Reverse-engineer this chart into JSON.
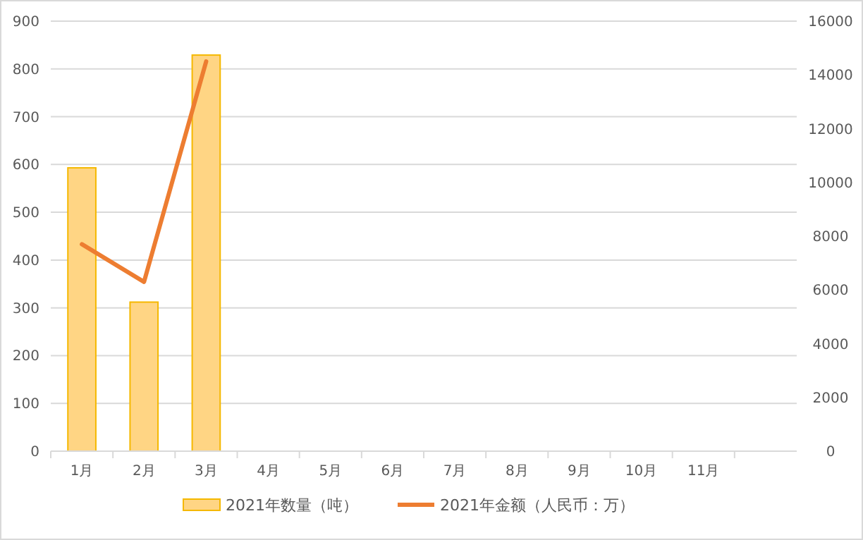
{
  "chart_data": {
    "type": "bar",
    "categories": [
      "1月",
      "2月",
      "3月",
      "4月",
      "5月",
      "6月",
      "7月",
      "8月",
      "9月",
      "10月",
      "11月",
      null
    ],
    "series": [
      {
        "name": "2021年数量（吨）",
        "color": "#ffd584",
        "values": [
          593,
          312,
          829,
          null,
          null,
          null,
          null,
          null,
          null,
          null,
          null,
          null
        ]
      },
      {
        "name": "2021年金额（人民币：万）",
        "type": "line",
        "axis": "y2",
        "color": "#ed7d31",
        "values": [
          7700,
          6300,
          14500,
          null,
          null,
          null,
          null,
          null,
          null,
          null,
          null,
          null
        ]
      }
    ],
    "ylim": [
      0,
      900
    ],
    "yticks": [
      0,
      100,
      200,
      300,
      400,
      500,
      600,
      700,
      800,
      900
    ],
    "y2lim": [
      0,
      16000
    ],
    "y2ticks": [
      0,
      2000,
      4000,
      6000,
      8000,
      10000,
      12000,
      14000,
      16000
    ],
    "grid": "y",
    "legend": "bottom",
    "marker": "none",
    "line_style": "solid"
  }
}
